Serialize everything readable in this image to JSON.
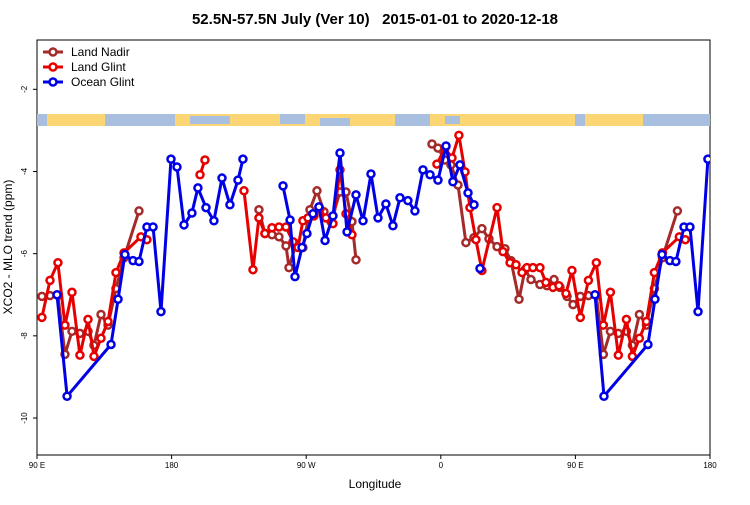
{
  "chart_data": {
    "type": "line",
    "title": "52.5N-57.5N July (Ver 10)   2015-01-01 to 2020-12-18",
    "xlabel": "Longitude",
    "ylabel": "XCO2 - MLO trend (ppm)",
    "xlim": [
      90,
      540
    ],
    "xticks": [
      {
        "value": 90,
        "label": "90 E"
      },
      {
        "value": 180,
        "label": "180"
      },
      {
        "value": 270,
        "label": "90 W"
      },
      {
        "value": 360,
        "label": "0"
      },
      {
        "value": 450,
        "label": "90 E"
      },
      {
        "value": 540,
        "label": "180"
      }
    ],
    "ylim": [
      -10.9,
      -0.8
    ],
    "yticks": [
      -2,
      -4,
      -6,
      -8,
      -10
    ],
    "legend": "upper left",
    "series": [
      {
        "name": "Land Nadir",
        "color": "#a52a2a",
        "x": [
          93.3,
          98.7,
          104.0,
          108.7,
          113.4,
          118.7,
          124.1,
          128.1,
          132.8,
          137.5,
          142.8,
          148.2,
          158.2,
          null,
          238.4,
          242.4,
          247.1,
          251.8,
          256.5,
          258.5,
          263.2,
          267.8,
          272.5,
          277.2,
          281.9,
          286.6,
          292.6,
          296.6,
          300.6,
          303.3,
          null,
          354.1,
          358.1,
          362.8,
          366.8,
          371.5,
          376.8,
          382.2,
          387.5,
          392.2,
          397.6,
          402.9,
          406.9,
          412.3,
          416.3,
          420.3,
          426.3,
          431.0,
          435.7,
          439.7,
          444.4,
          448.4,
          453.3,
          458.7,
          464.0,
          468.7,
          473.4,
          478.7,
          484.1,
          488.1,
          492.8,
          497.5,
          502.8,
          508.2,
          518.2
        ],
        "values": [
          -7.04,
          -7.02,
          -7.02,
          -8.45,
          -7.89,
          -7.94,
          -7.89,
          -8.23,
          -7.48,
          -7.74,
          -6.85,
          -6.1,
          -4.96,
          null,
          -4.93,
          -5.51,
          -5.54,
          -5.59,
          -5.81,
          -6.34,
          -5.76,
          -5.85,
          -4.93,
          -4.47,
          -4.98,
          -5.22,
          -4.5,
          -4.5,
          -5.22,
          -6.15,
          null,
          -3.33,
          -3.43,
          -3.72,
          -3.84,
          -4.33,
          -5.73,
          -5.61,
          -5.39,
          -5.64,
          -5.83,
          -5.88,
          -6.17,
          -7.11,
          -6.39,
          -6.63,
          -6.75,
          -6.78,
          -6.63,
          -6.82,
          -7.04,
          -7.24,
          -7.04,
          -7.02,
          -7.02,
          -8.45,
          -7.89,
          -7.94,
          -7.89,
          -8.23,
          -7.48,
          -7.74,
          -6.85,
          -6.1,
          -4.96
        ]
      },
      {
        "name": "Land Glint",
        "color": "#e60000",
        "x": [
          93.3,
          98.7,
          104.0,
          108.7,
          113.4,
          118.7,
          124.1,
          128.1,
          132.8,
          137.5,
          142.8,
          148.2,
          159.5,
          163.5,
          null,
          199.0,
          202.3,
          null,
          228.4,
          234.4,
          238.4,
          242.4,
          247.1,
          251.8,
          256.5,
          261.2,
          264.5,
          267.8,
          271.2,
          275.2,
          279.2,
          283.2,
          287.9,
          292.6,
          296.6,
          300.6,
          null,
          357.4,
          362.8,
          367.5,
          372.1,
          376.2,
          379.5,
          383.5,
          387.5,
          397.6,
          401.6,
          406.3,
          410.3,
          414.3,
          417.6,
          421.6,
          426.3,
          430.3,
          435.0,
          439.0,
          443.7,
          447.7,
          453.3,
          458.7,
          464.0,
          468.7,
          473.4,
          478.7,
          484.1,
          488.1,
          492.8,
          497.5,
          502.8,
          508.2,
          519.5,
          523.5
        ],
        "values": [
          -7.55,
          -6.65,
          -6.22,
          -7.74,
          -6.94,
          -8.47,
          -7.6,
          -8.5,
          -8.06,
          -7.65,
          -6.46,
          -5.98,
          -5.59,
          -5.66,
          null,
          -4.08,
          -3.72,
          null,
          -4.47,
          -6.39,
          -5.13,
          -5.51,
          -5.37,
          -5.35,
          -5.35,
          -5.71,
          -5.85,
          -5.2,
          -5.13,
          -5.08,
          -4.91,
          -5.13,
          -5.27,
          -3.96,
          -5.03,
          -5.54,
          null,
          -3.82,
          -3.43,
          -3.67,
          -3.12,
          -4.01,
          -4.88,
          -5.66,
          -6.41,
          -4.88,
          -5.95,
          -6.22,
          -6.27,
          -6.46,
          -6.34,
          -6.34,
          -6.34,
          -6.7,
          -6.82,
          -6.78,
          -6.97,
          -6.41,
          -7.55,
          -6.65,
          -6.22,
          -7.74,
          -6.94,
          -8.47,
          -7.6,
          -8.5,
          -8.06,
          -7.65,
          -6.46,
          -5.98,
          -5.59,
          -5.66
        ]
      },
      {
        "name": "Ocean Glint",
        "color": "#0000e6",
        "x": [
          103.4,
          110.1,
          139.5,
          144.2,
          148.8,
          154.2,
          158.2,
          163.5,
          167.6,
          172.9,
          179.6,
          183.6,
          188.3,
          193.6,
          197.6,
          203.0,
          208.3,
          213.7,
          219.0,
          224.4,
          227.7,
          null,
          254.5,
          259.2,
          262.5,
          267.2,
          270.5,
          274.5,
          278.5,
          282.6,
          287.9,
          292.6,
          297.3,
          303.3,
          308.0,
          313.3,
          318.0,
          323.3,
          328.0,
          332.7,
          338.0,
          342.7,
          348.1,
          352.8,
          358.1,
          363.5,
          368.1,
          372.8,
          378.2,
          382.2,
          null,
          386.2,
          null,
          463.1,
          469.1,
          498.5,
          503.2,
          507.9,
          513.2,
          517.2,
          522.6,
          526.6,
          532.0,
          538.6
        ],
        "values": [
          -7.0,
          -9.47,
          -8.21,
          -7.11,
          -6.02,
          -6.17,
          -6.19,
          -5.35,
          -5.35,
          -7.41,
          -3.7,
          -3.89,
          -5.3,
          -5.01,
          -4.4,
          -4.88,
          -5.2,
          -4.16,
          -4.81,
          -4.21,
          -3.7,
          null,
          -4.35,
          -5.18,
          -6.56,
          -5.85,
          -5.51,
          -5.03,
          -4.86,
          -5.68,
          -5.08,
          -3.55,
          -5.47,
          -4.57,
          -5.2,
          -4.06,
          -5.13,
          -4.79,
          -5.32,
          -4.64,
          -4.71,
          -4.96,
          -3.96,
          -4.08,
          -4.21,
          -3.38,
          -4.25,
          -3.84,
          -4.52,
          -4.81,
          null,
          -6.36,
          null,
          -7.0,
          -9.47,
          -8.21,
          -7.11,
          -6.02,
          -6.17,
          -6.19,
          -5.35,
          -5.35,
          -7.41,
          -3.7
        ]
      }
    ]
  }
}
